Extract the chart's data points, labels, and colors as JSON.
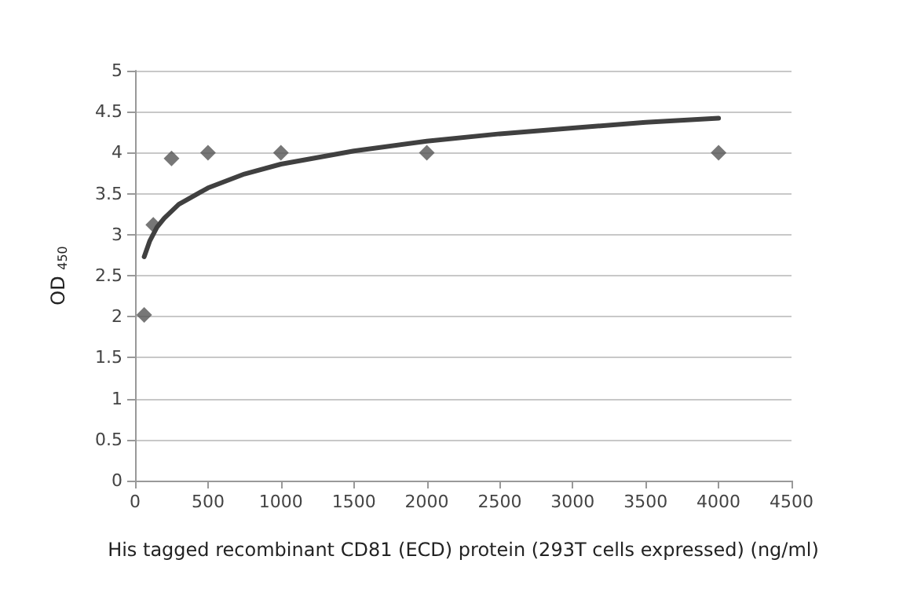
{
  "chart_data": {
    "type": "scatter",
    "xlabel": "His tagged recombinant CD81 (ECD) protein (293T cells expressed) (ng/ml)",
    "ylabel": "OD $_{450}$",
    "xlim": [
      0,
      4500
    ],
    "xticks": [
      0,
      500,
      1000,
      1500,
      2000,
      2500,
      3000,
      3500,
      4000,
      4500
    ],
    "ylim": [
      0,
      5
    ],
    "yticks": [
      0,
      0.5,
      1,
      1.5,
      2,
      2.5,
      3,
      3.5,
      4,
      4.5,
      5
    ],
    "grid": "y",
    "marker": "diamond",
    "series": [
      {
        "color": "#555555",
        "x": [
          62.5,
          125,
          250,
          500,
          1000,
          2000,
          4000
        ],
        "values": [
          2.02,
          3.12,
          3.93,
          4.0,
          4.0,
          4.0,
          4.0
        ]
      },
      {
        "type": "line",
        "color": "#404040",
        "line_style": "solid",
        "marker": "none",
        "x": [
          62.5,
          100,
          150,
          200,
          300,
          500,
          750,
          1000,
          1500,
          2000,
          2500,
          3000,
          3500,
          4000
        ],
        "values": [
          2.73,
          2.92,
          3.09,
          3.2,
          3.37,
          3.57,
          3.74,
          3.86,
          4.02,
          4.14,
          4.23,
          4.3,
          4.37,
          4.42
        ]
      }
    ]
  }
}
